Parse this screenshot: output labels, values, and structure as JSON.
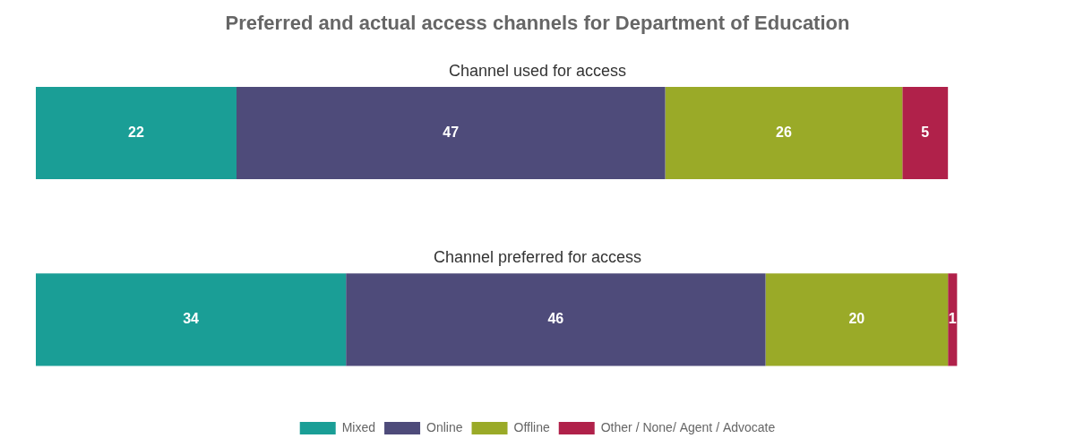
{
  "chart_data": {
    "type": "bar",
    "title": "Preferred and actual access channels for Department of Education",
    "orientation": "horizontal",
    "stacked": true,
    "categories": [
      "Channel used for access",
      "Channel preferred for access"
    ],
    "series": [
      {
        "name": "Mixed",
        "color": "#1a9e96",
        "values": [
          22,
          34
        ]
      },
      {
        "name": "Online",
        "color": "#4e4b7a",
        "values": [
          47,
          46
        ]
      },
      {
        "name": "Offline",
        "color": "#9aaa28",
        "values": [
          26,
          20
        ]
      },
      {
        "name": "Other / None/ Agent / Advocate",
        "color": "#b0214a",
        "values": [
          5,
          1
        ]
      }
    ],
    "xlim": [
      0,
      110
    ],
    "xticks": [
      0,
      10,
      20,
      30,
      40,
      50,
      60,
      70,
      80,
      90,
      100,
      110
    ],
    "data_labels": true,
    "tick_labels": false,
    "grid": false,
    "legend": "bottom"
  }
}
